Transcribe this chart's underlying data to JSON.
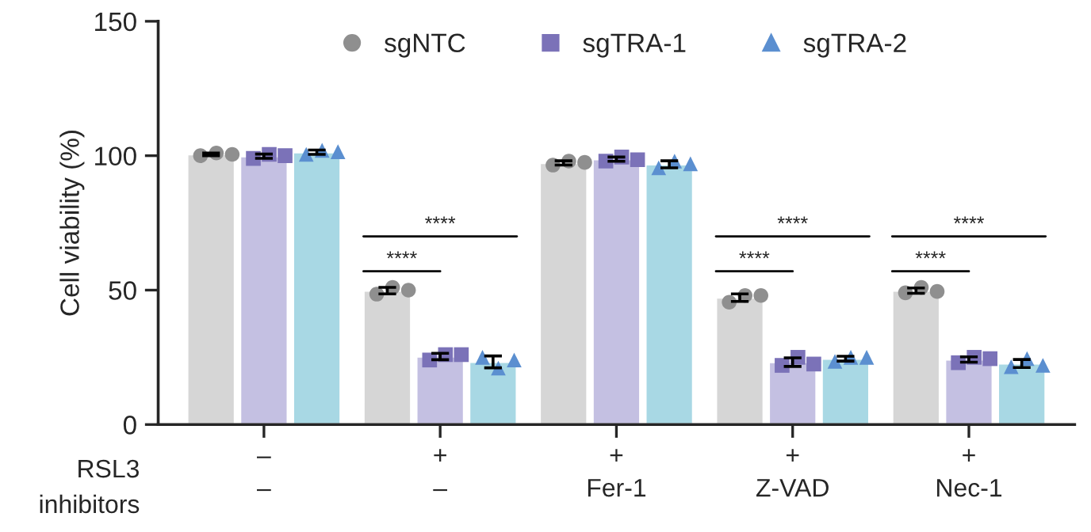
{
  "chart_data": {
    "type": "bar",
    "ylabel": "Cell viability (%)",
    "categories": [
      "–\n–",
      "+\n–",
      "+\nFer-1",
      "+\nZ-VAD",
      "+\nNec-1"
    ],
    "series": [
      {
        "color": "#d6d6d6",
        "values": [
          100.5,
          49.8,
          97.3,
          47.2,
          49.8
        ],
        "errors": [
          0.5,
          1.2,
          0.8,
          1.4,
          1.0
        ]
      },
      {
        "color": "#c4c0e2",
        "values": [
          99.8,
          25.3,
          98.7,
          23.2,
          24.2
        ],
        "errors": [
          0.8,
          1.2,
          0.8,
          1.6,
          1.0
        ]
      },
      {
        "color": "#a8d8e4",
        "values": [
          101.3,
          23.3,
          96.8,
          24.5,
          22.7
        ],
        "errors": [
          0.8,
          2.2,
          1.3,
          0.9,
          1.5
        ]
      },
      {
        "type": "scatter",
        "name": "sgNTC",
        "color": "#8f8f8f",
        "marker": "circle",
        "x": [
          "–\n–",
          "–\n–",
          "–\n–",
          "+\n–",
          "+\n–",
          "+\n–",
          "+\nFer-1",
          "+\nFer-1",
          "+\nFer-1",
          "+\nZ-VAD",
          "+\nZ-VAD",
          "+\nZ-VAD",
          "+\nNec-1",
          "+\nNec-1",
          "+\nNec-1"
        ],
        "values": [
          100,
          101,
          100.5,
          48.5,
          51,
          50,
          96.5,
          98,
          97.5,
          45.5,
          48,
          48,
          49,
          51,
          49.5
        ]
      },
      {
        "type": "scatter",
        "name": "sgTRA-1",
        "color": "#7b72b8",
        "marker": "square",
        "x": [
          "–\n–",
          "–\n–",
          "–\n–",
          "+\n–",
          "+\n–",
          "+\n–",
          "+\nFer-1",
          "+\nFer-1",
          "+\nFer-1",
          "+\nZ-VAD",
          "+\nZ-VAD",
          "+\nZ-VAD",
          "+\nNec-1",
          "+\nNec-1",
          "+\nNec-1"
        ],
        "values": [
          99,
          100.5,
          100,
          24,
          26,
          26,
          98,
          99.5,
          98.5,
          22,
          25,
          22.5,
          23,
          25,
          24.5
        ]
      },
      {
        "type": "scatter",
        "name": "sgTRA-2",
        "color": "#5b8fd0",
        "marker": "triangle",
        "x": [
          "–\n–",
          "–\n–",
          "–\n–",
          "+\n–",
          "+\n–",
          "+\n–",
          "+\nFer-1",
          "+\nFer-1",
          "+\nFer-1",
          "+\nZ-VAD",
          "+\nZ-VAD",
          "+\nZ-VAD",
          "+\nNec-1",
          "+\nNec-1",
          "+\nNec-1"
        ],
        "values": [
          100.5,
          102,
          101.5,
          25,
          21,
          24,
          95.5,
          98,
          97,
          23.5,
          25,
          25,
          21.5,
          24.5,
          22
        ]
      }
    ],
    "ylim": [
      0,
      150
    ],
    "yticks": [
      0,
      50,
      100,
      150
    ],
    "legend": "top",
    "grid": false,
    "annotations": [
      "RSL3",
      "inhibitors",
      "****",
      "****",
      "****",
      "****",
      "****",
      "****"
    ]
  }
}
